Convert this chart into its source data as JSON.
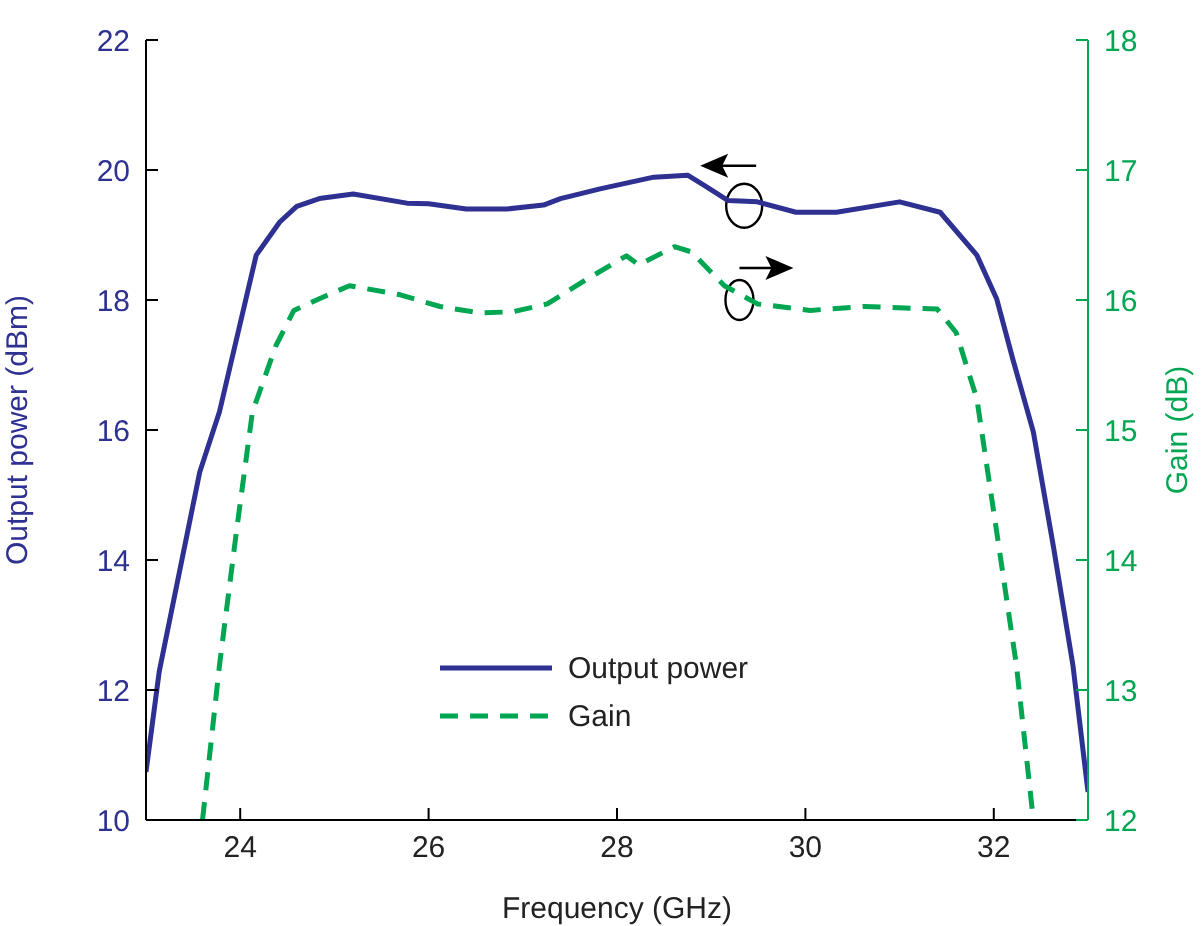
{
  "chart_data": {
    "type": "line",
    "xlabel": "Frequency (GHz)",
    "ylabel": "Output power (dBm)",
    "y2label": "Gain (dB)",
    "xlim": [
      23,
      33
    ],
    "xticks": [
      24,
      26,
      28,
      30,
      32
    ],
    "ylim": [
      10,
      22
    ],
    "yticks": [
      10,
      12,
      14,
      16,
      18,
      20,
      22
    ],
    "y2lim": [
      12,
      18
    ],
    "y2ticks": [
      12,
      13,
      14,
      15,
      16,
      17,
      18
    ],
    "grid": false,
    "legend": "bottom",
    "marker": "none",
    "series": [
      {
        "name": "Output power",
        "color": "#2e3192",
        "line_style": "solid",
        "x": [
          23,
          23.14,
          23.57,
          23.78,
          24.17,
          24.42,
          24.6,
          24.84,
          25.2,
          25.77,
          26,
          26.4,
          26.83,
          27.22,
          27.4,
          27.82,
          28.39,
          28.75,
          28.93,
          29.18,
          29.49,
          29.9,
          30.33,
          31,
          31.43,
          31.82,
          32.03,
          32.2,
          32.42,
          32.63,
          32.84,
          33
        ],
        "values": [
          10.74,
          12.28,
          15.35,
          16.28,
          18.69,
          19.2,
          19.44,
          19.56,
          19.63,
          19.49,
          19.48,
          19.4,
          19.4,
          19.46,
          19.56,
          19.71,
          19.89,
          19.92,
          19.76,
          19.53,
          19.51,
          19.35,
          19.35,
          19.51,
          19.35,
          18.69,
          18.02,
          17.1,
          15.97,
          14.23,
          12.38,
          10.43
        ]
      },
      {
        "name": "Gain",
        "color": "#00a651",
        "line_style": "dashed",
        "axis": "y2",
        "x": [
          23.6,
          23.78,
          23.96,
          24.13,
          24.38,
          24.57,
          24.84,
          25.16,
          25.7,
          26.12,
          26.55,
          26.9,
          27.26,
          27.68,
          28.1,
          28.23,
          28.61,
          28.79,
          29.14,
          29.49,
          30.05,
          30.62,
          31.4,
          31.6,
          31.82,
          32.03,
          32.24,
          32.42
        ],
        "values": [
          12,
          13.19,
          14.22,
          15.14,
          15.65,
          15.92,
          16.01,
          16.11,
          16.04,
          15.95,
          15.9,
          15.91,
          15.97,
          16.16,
          16.34,
          16.27,
          16.41,
          16.37,
          16.11,
          15.97,
          15.92,
          15.95,
          15.93,
          15.75,
          15.24,
          14.22,
          13.19,
          12
        ]
      }
    ]
  }
}
